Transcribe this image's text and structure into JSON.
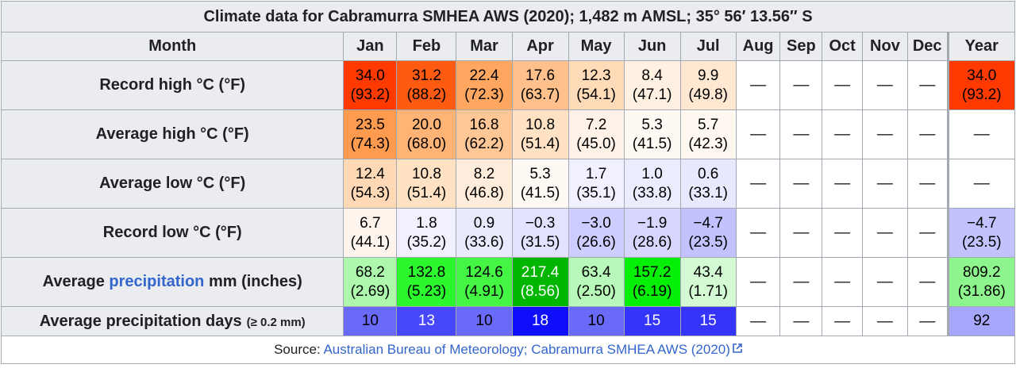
{
  "caption": "Climate data for Cabramurra SMHEA AWS (2020); 1,482 m AMSL; 35° 56′ 13.56″ S",
  "header": {
    "month_label": "Month",
    "months": [
      "Jan",
      "Feb",
      "Mar",
      "Apr",
      "May",
      "Jun",
      "Jul",
      "Aug",
      "Sep",
      "Oct",
      "Nov",
      "Dec"
    ],
    "year_label": "Year"
  },
  "nil": "—",
  "rows": [
    {
      "label": "Record high °C (°F)",
      "cells": [
        {
          "c": "34.0",
          "f": "(93.2)",
          "bg": "#ff3a00",
          "fg": "#000000"
        },
        {
          "c": "31.2",
          "f": "(88.2)",
          "bg": "#ff5a12",
          "fg": "#000000"
        },
        {
          "c": "22.4",
          "f": "(72.3)",
          "bg": "#ffa760",
          "fg": "#000000"
        },
        {
          "c": "17.6",
          "f": "(63.7)",
          "bg": "#ffc08c",
          "fg": "#000000"
        },
        {
          "c": "12.3",
          "f": "(54.1)",
          "bg": "#ffdbb7",
          "fg": "#000000"
        },
        {
          "c": "8.4",
          "f": "(47.1)",
          "bg": "#fff0e1",
          "fg": "#000000"
        },
        {
          "c": "9.9",
          "f": "(49.8)",
          "bg": "#ffe8d2",
          "fg": "#000000"
        }
      ],
      "year": {
        "c": "34.0",
        "f": "(93.2)",
        "bg": "#ff3a00",
        "fg": "#000000"
      }
    },
    {
      "label": "Average high °C (°F)",
      "cells": [
        {
          "c": "23.5",
          "f": "(74.3)",
          "bg": "#ff9b4e",
          "fg": "#000000"
        },
        {
          "c": "20.0",
          "f": "(68.0)",
          "bg": "#ffb375",
          "fg": "#000000"
        },
        {
          "c": "16.8",
          "f": "(62.2)",
          "bg": "#ffc796",
          "fg": "#000000"
        },
        {
          "c": "10.8",
          "f": "(51.4)",
          "bg": "#ffe2c4",
          "fg": "#000000"
        },
        {
          "c": "7.2",
          "f": "(45.0)",
          "bg": "#fff3e9",
          "fg": "#000000"
        },
        {
          "c": "5.3",
          "f": "(41.5)",
          "bg": "#fff9f4",
          "fg": "#000000"
        },
        {
          "c": "5.7",
          "f": "(42.3)",
          "bg": "#fff8f1",
          "fg": "#000000"
        }
      ],
      "year": null
    },
    {
      "label": "Average low °C (°F)",
      "cells": [
        {
          "c": "12.4",
          "f": "(54.3)",
          "bg": "#ffd9b5",
          "fg": "#000000"
        },
        {
          "c": "10.8",
          "f": "(51.4)",
          "bg": "#ffe2c4",
          "fg": "#000000"
        },
        {
          "c": "8.2",
          "f": "(46.8)",
          "bg": "#ffecda",
          "fg": "#000000"
        },
        {
          "c": "5.3",
          "f": "(41.5)",
          "bg": "#fff9f4",
          "fg": "#000000"
        },
        {
          "c": "1.7",
          "f": "(35.1)",
          "bg": "#f0f0ff",
          "fg": "#000000"
        },
        {
          "c": "1.0",
          "f": "(33.8)",
          "bg": "#ececff",
          "fg": "#000000"
        },
        {
          "c": "0.6",
          "f": "(33.1)",
          "bg": "#e8e8ff",
          "fg": "#000000"
        }
      ],
      "year": null
    },
    {
      "label": "Record low °C (°F)",
      "cells": [
        {
          "c": "6.7",
          "f": "(44.1)",
          "bg": "#fff5ec",
          "fg": "#000000"
        },
        {
          "c": "1.8",
          "f": "(35.2)",
          "bg": "#f0f0ff",
          "fg": "#000000"
        },
        {
          "c": "0.9",
          "f": "(33.6)",
          "bg": "#eaeaff",
          "fg": "#000000"
        },
        {
          "c": "−0.3",
          "f": "(31.5)",
          "bg": "#e2e2ff",
          "fg": "#000000"
        },
        {
          "c": "−3.0",
          "f": "(26.6)",
          "bg": "#cdcdff",
          "fg": "#000000"
        },
        {
          "c": "−1.9",
          "f": "(28.6)",
          "bg": "#d6d6ff",
          "fg": "#000000"
        },
        {
          "c": "−4.7",
          "f": "(23.5)",
          "bg": "#c2c2ff",
          "fg": "#000000"
        }
      ],
      "year": {
        "c": "−4.7",
        "f": "(23.5)",
        "bg": "#c2c2ff",
        "fg": "#000000"
      }
    },
    {
      "label_pre": "Average ",
      "label_link": "precipitation",
      "label_post": " mm (inches)",
      "cells": [
        {
          "c": "68.2",
          "f": "(2.69)",
          "bg": "#aef8ae",
          "fg": "#000000"
        },
        {
          "c": "132.8",
          "f": "(5.23)",
          "bg": "#2cf62c",
          "fg": "#000000"
        },
        {
          "c": "124.6",
          "f": "(4.91)",
          "bg": "#44f544",
          "fg": "#000000"
        },
        {
          "c": "217.4",
          "f": "(8.56)",
          "bg": "#00b600",
          "fg": "#ffffff"
        },
        {
          "c": "63.4",
          "f": "(2.50)",
          "bg": "#b8f8b8",
          "fg": "#000000"
        },
        {
          "c": "157.2",
          "f": "(6.19)",
          "bg": "#06ef06",
          "fg": "#000000"
        },
        {
          "c": "43.4",
          "f": "(1.71)",
          "bg": "#d3fad3",
          "fg": "#000000"
        }
      ],
      "year": {
        "c": "809.2",
        "f": "(31.86)",
        "bg": "#8ef58e",
        "fg": "#000000"
      }
    }
  ],
  "days_row": {
    "label": "Average precipitation days",
    "label_small": "(≥ 0.2 mm)",
    "cells": [
      {
        "v": "10",
        "bg": "#6a6af8",
        "fg": "#000000"
      },
      {
        "v": "13",
        "bg": "#4747fb",
        "fg": "#ffffff"
      },
      {
        "v": "10",
        "bg": "#6a6af8",
        "fg": "#000000"
      },
      {
        "v": "18",
        "bg": "#0e0efc",
        "fg": "#ffffff"
      },
      {
        "v": "10",
        "bg": "#6a6af8",
        "fg": "#000000"
      },
      {
        "v": "15",
        "bg": "#3434fb",
        "fg": "#ffffff"
      },
      {
        "v": "15",
        "bg": "#3434fb",
        "fg": "#ffffff"
      }
    ],
    "year": {
      "v": "92",
      "bg": "#a6a6fa",
      "fg": "#000000"
    }
  },
  "source": {
    "prefix": "Source: ",
    "link_text": "Australian Bureau of Meteorology; Cabramurra SMHEA AWS (2020)",
    "icon": "external-link-icon"
  }
}
